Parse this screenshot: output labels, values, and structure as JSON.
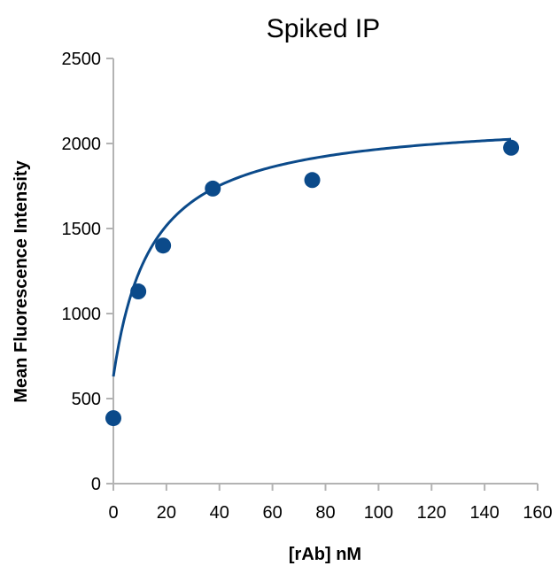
{
  "chart_data": {
    "type": "scatter",
    "title": "Spiked IP",
    "xlabel": "[rAb] nM",
    "ylabel": "Mean Fluorescence Intensity",
    "xlim": [
      0,
      160
    ],
    "ylim": [
      0,
      2500
    ],
    "x_ticks": [
      0,
      20,
      40,
      60,
      80,
      100,
      120,
      140,
      160
    ],
    "y_ticks": [
      0,
      500,
      1000,
      1500,
      2000,
      2500
    ],
    "grid": false,
    "legend": "none",
    "colors": {
      "series": "#0b4a8a",
      "axis": "#b3b3b3"
    },
    "series": [
      {
        "points": [
          {
            "x": 0,
            "y": 385
          },
          {
            "x": 9.4,
            "y": 1130
          },
          {
            "x": 18.75,
            "y": 1400
          },
          {
            "x": 37.5,
            "y": 1735
          },
          {
            "x": 75,
            "y": 1785
          },
          {
            "x": 150,
            "y": 1975
          }
        ]
      }
    ],
    "fit_curve": {
      "type": "one-site binding with baseline",
      "base": 630,
      "max_increase": 1530,
      "kd": 14.5,
      "x_range": [
        0,
        150
      ]
    }
  }
}
